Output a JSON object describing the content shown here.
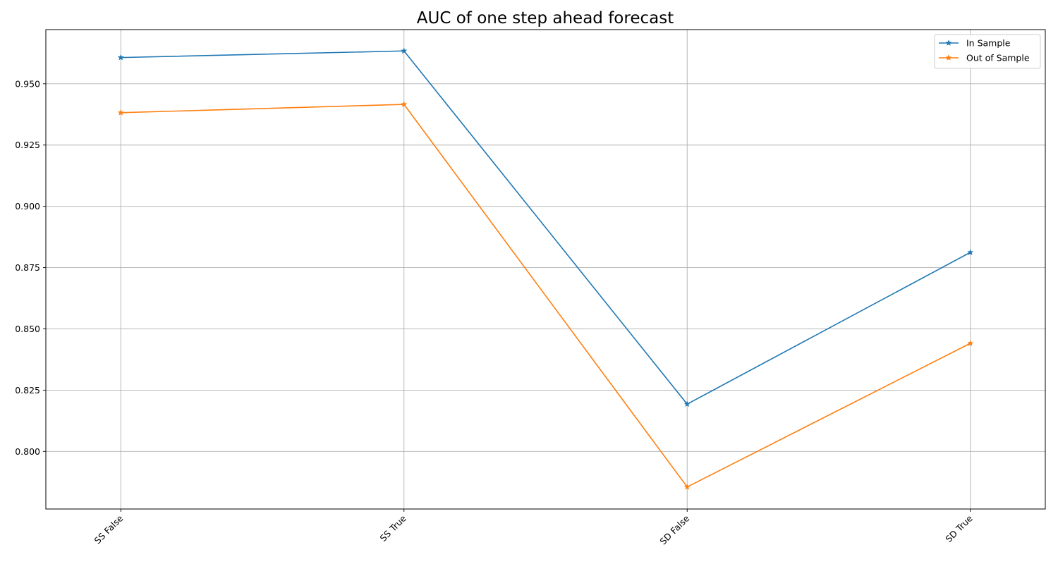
{
  "chart_data": {
    "type": "line",
    "title": "AUC of one step ahead forecast",
    "xlabel": "",
    "ylabel": "",
    "categories": [
      "SS False",
      "SS True",
      "SD False",
      "SD True"
    ],
    "series": [
      {
        "name": "In Sample",
        "color": "#1f77b4",
        "marker": "star",
        "values": [
          0.9607,
          0.9634,
          0.8193,
          0.8812
        ]
      },
      {
        "name": "Out of Sample",
        "color": "#ff7f0e",
        "marker": "star",
        "values": [
          0.9382,
          0.9416,
          0.7855,
          0.8441
        ]
      }
    ],
    "ylim": [
      0.7765,
      0.9721
    ],
    "yticks": [
      0.8,
      0.825,
      0.85,
      0.875,
      0.9,
      0.925,
      0.95
    ],
    "ytick_labels": [
      "0.800",
      "0.825",
      "0.850",
      "0.875",
      "0.900",
      "0.925",
      "0.950"
    ],
    "grid": true,
    "legend_position": "top-right",
    "x_tick_rotation": "45 degrees"
  }
}
